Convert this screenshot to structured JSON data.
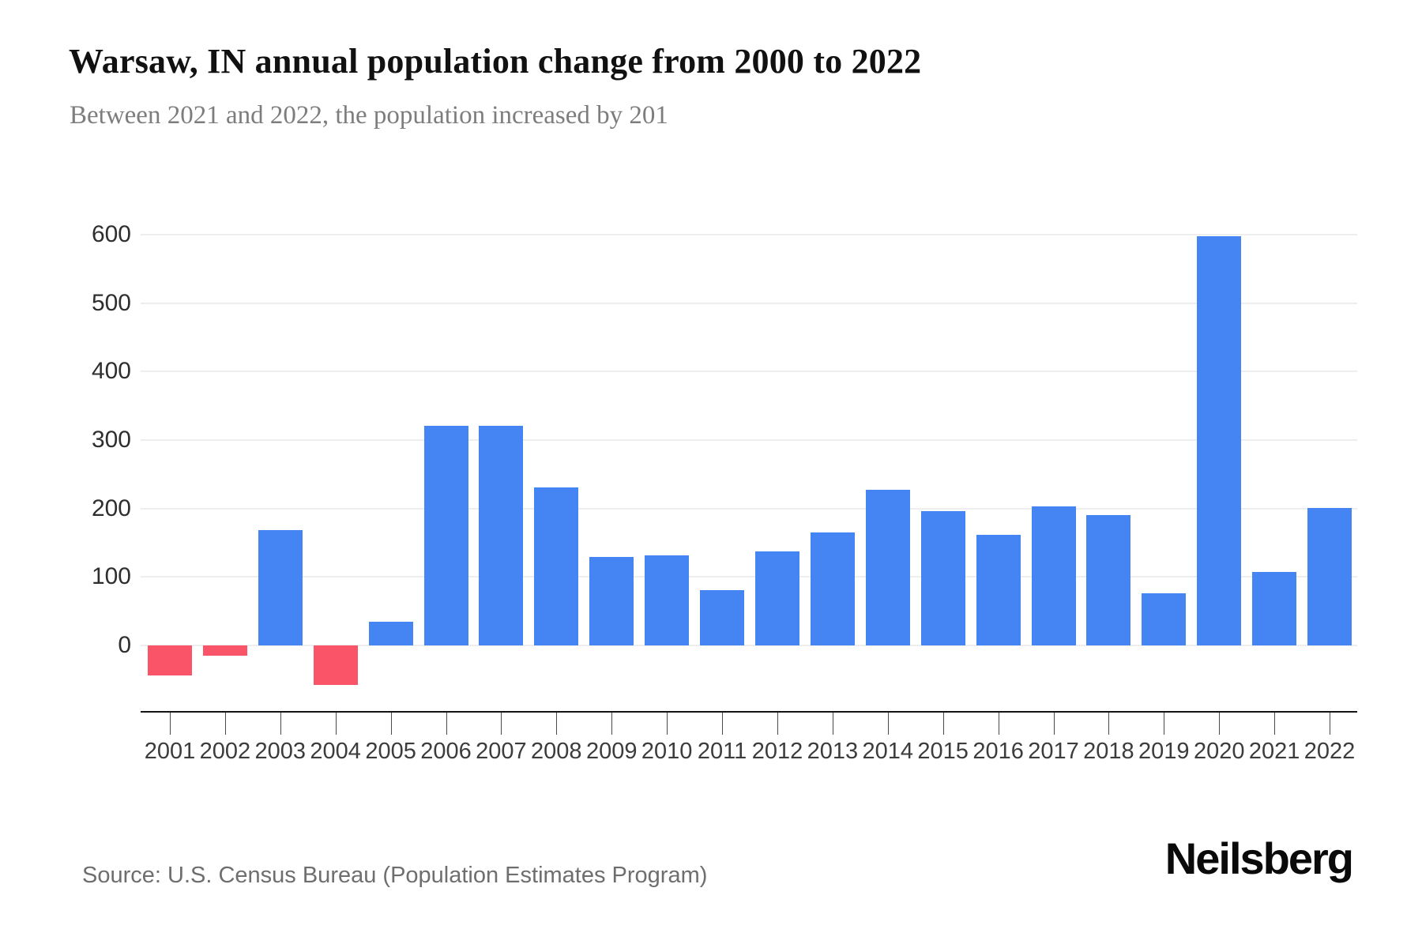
{
  "header": {
    "title": "Warsaw, IN annual population change from 2000 to 2022",
    "subtitle": "Between 2021 and 2022, the population increased by 201"
  },
  "footer": {
    "source": "Source: U.S. Census Bureau (Population Estimates Program)",
    "brand": "Neilsberg"
  },
  "chart_data": {
    "type": "bar",
    "title": "Warsaw, IN annual population change from 2000 to 2022",
    "subtitle": "Between 2021 and 2022, the population increased by 201",
    "categories": [
      "2001",
      "2002",
      "2003",
      "2004",
      "2005",
      "2006",
      "2007",
      "2008",
      "2009",
      "2010",
      "2011",
      "2012",
      "2013",
      "2014",
      "2015",
      "2016",
      "2017",
      "2018",
      "2019",
      "2020",
      "2021",
      "2022"
    ],
    "values": [
      -44,
      -15,
      168,
      -58,
      35,
      321,
      321,
      231,
      129,
      132,
      81,
      137,
      165,
      227,
      196,
      162,
      203,
      190,
      76,
      598,
      107,
      201
    ],
    "xlabel": "",
    "ylabel": "",
    "yticks": [
      0,
      100,
      200,
      300,
      400,
      500,
      600
    ],
    "ylim": [
      -100,
      600
    ],
    "grid": true,
    "legend": false,
    "colors": {
      "positive": "#4484F3",
      "negative": "#FA5468",
      "gridline": "#eeeeee",
      "axis": "#141414",
      "tick_label": "#3c3c3c"
    },
    "source": "Source: U.S. Census Bureau (Population Estimates Program)",
    "brand": "Neilsberg"
  }
}
